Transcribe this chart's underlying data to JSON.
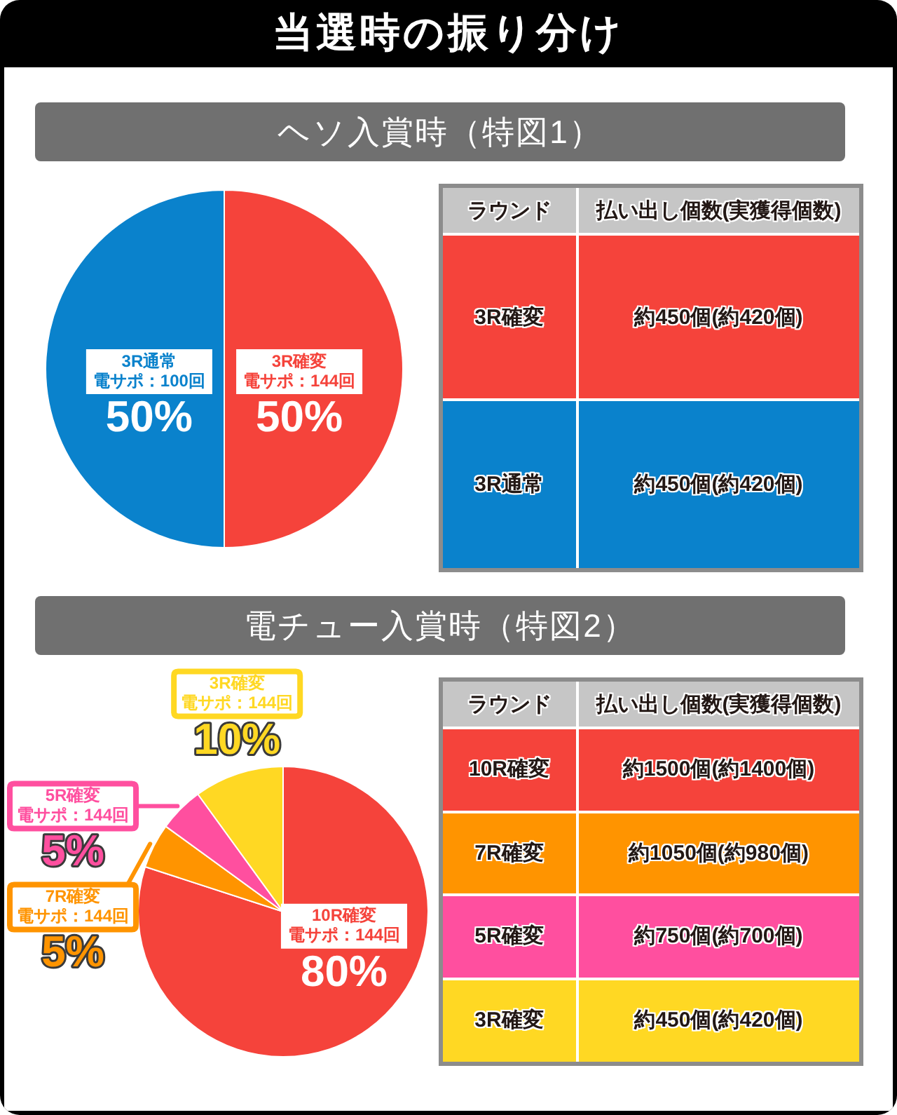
{
  "chart_data": [
    {
      "type": "other",
      "title": "当選時の振り分け"
    },
    {
      "type": "pie",
      "title": "ヘソ入賞時（特図1）",
      "categories": [
        "3R確変電サポ：144回",
        "3R通常電サポ：100回"
      ],
      "values": [
        50,
        50
      ],
      "colors": [
        "#f5433b",
        "#0a82cc"
      ],
      "value_labels": [
        "50%",
        "50%"
      ]
    },
    {
      "type": "other",
      "categories": [
        "ラウンド",
        "払い出し個数(実獲得個数)"
      ],
      "cell_labels": [
        [
          "3R確変",
          "約450個(約420個)"
        ],
        [
          "3R通常",
          "約450個(約420個)"
        ]
      ]
    },
    {
      "type": "pie",
      "title": "電チュー入賞時（特図2）",
      "categories": [
        "10R確変電サポ：144回",
        "7R確変電サポ：144回",
        "5R確変電サポ：144回",
        "3R確変電サポ：144回"
      ],
      "values": [
        80,
        5,
        5,
        10
      ],
      "colors": [
        "#f5433b",
        "#ff9400",
        "#ff4f9f",
        "#ffd823"
      ],
      "value_labels": [
        "80%",
        "5%",
        "5%",
        "10%"
      ]
    },
    {
      "type": "other",
      "categories": [
        "ラウンド",
        "払い出し個数(実獲得個数)"
      ],
      "cell_labels": [
        [
          "10R確変",
          "約1500個(約1400個)"
        ],
        [
          "7R確変",
          "約1050個(約980個)"
        ],
        [
          "5R確変",
          "約750個(約700個)"
        ],
        [
          "3R確変",
          "約450個(約420個)"
        ]
      ]
    }
  ]
}
